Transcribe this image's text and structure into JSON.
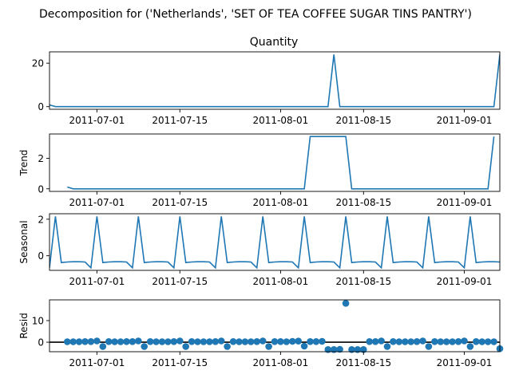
{
  "suptitle": "Decomposition for ('Netherlands', 'SET OF TEA COFFEE SUGAR TINS PANTRY')",
  "series_color": "#1f77b4",
  "date_start": "2011-06-23",
  "date_end": "2011-09-07",
  "x_ticks": [
    "2011-07-01",
    "2011-07-15",
    "2011-08-01",
    "2011-08-15",
    "2011-09-01"
  ],
  "chart_data": [
    {
      "type": "line",
      "title": "Quantity",
      "ylabel": "",
      "ylim": [
        -1.2,
        25.2
      ],
      "yticks": [
        0,
        20
      ],
      "x": [
        "2011-06-23",
        "2011-06-24",
        "2011-08-09",
        "2011-08-10",
        "2011-08-11",
        "2011-09-06",
        "2011-09-07"
      ],
      "y": [
        0.8,
        0,
        0,
        24,
        0,
        0,
        24
      ]
    },
    {
      "type": "line",
      "title": "",
      "ylabel": "Trend",
      "ylim": [
        -0.17,
        3.6
      ],
      "yticks": [
        0,
        2
      ],
      "x": [
        "2011-06-26",
        "2011-06-27",
        "2011-08-05",
        "2011-08-06",
        "2011-08-12",
        "2011-08-13",
        "2011-09-05",
        "2011-09-06"
      ],
      "y": [
        0.12,
        0,
        0,
        3.43,
        3.43,
        0,
        0,
        3.43
      ]
    },
    {
      "type": "line",
      "title": "",
      "ylabel": "Seasonal",
      "ylim": [
        -0.8,
        2.3
      ],
      "yticks": [
        0,
        2
      ],
      "period_pattern": [
        2.15,
        -0.37,
        -0.34,
        -0.33,
        -0.33,
        -0.34,
        -0.66
      ],
      "first_peak_date": "2011-06-24"
    },
    {
      "type": "scatter",
      "title": "",
      "ylabel": "Resid",
      "ylim": [
        -4.4,
        19.6
      ],
      "yticks": [
        0,
        10
      ],
      "zero_line": true,
      "x_start": "2011-06-26",
      "values": [
        0.2,
        0.2,
        0.2,
        0.3,
        0.3,
        0.6,
        -2.0,
        0.3,
        0.2,
        0.2,
        0.3,
        0.3,
        0.6,
        -2.0,
        0.3,
        0.2,
        0.2,
        0.2,
        0.3,
        0.6,
        -2.0,
        0.3,
        0.2,
        0.2,
        0.2,
        0.3,
        0.6,
        -2.0,
        0.3,
        0.2,
        0.2,
        0.2,
        0.3,
        0.6,
        -2.0,
        0.3,
        0.3,
        0.2,
        0.4,
        0.5,
        -1.8,
        0.3,
        0.3,
        0.4,
        -3.4,
        -3.4,
        -3.3,
        18.0,
        -3.4,
        -3.4,
        -3.4,
        0.3,
        0.3,
        0.6,
        -2.0,
        0.3,
        0.2,
        0.2,
        0.2,
        0.3,
        0.6,
        -2.0,
        0.3,
        0.2,
        0.2,
        0.2,
        0.3,
        0.6,
        -2.0,
        0.3,
        0.2,
        0.2,
        0.2,
        -3.0
      ]
    }
  ]
}
